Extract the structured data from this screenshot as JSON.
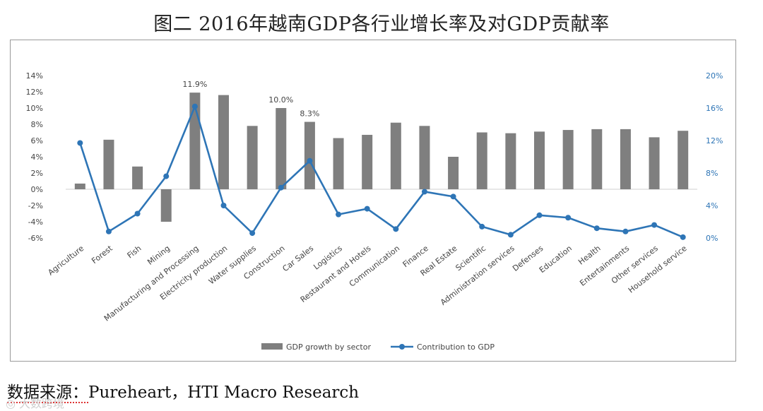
{
  "title": "图二 2016年越南GDP各行业增长率及对GDP贡献率",
  "source": {
    "label": "数据来源：",
    "text": "Pureheart，HTI Macro Research"
  },
  "watermark": "◎ 大数跨境",
  "chart_data": {
    "type": "bar",
    "categories": [
      "Agriculture",
      "Forest",
      "Fish",
      "Mining",
      "Manufacturing and Processing",
      "Electricity production",
      "Water supplies",
      "Construction",
      "Car Sales",
      "Logistics",
      "Restaurant and Hotels",
      "Communication",
      "Finance",
      "Real Estate",
      "Scientific",
      "Administration services",
      "Defenses",
      "Education",
      "Health",
      "Entertainments",
      "Other services",
      "Household service"
    ],
    "series": [
      {
        "name": "GDP growth by sector",
        "type": "bar",
        "axis": "left",
        "color": "#7f7f7f",
        "values": [
          0.7,
          6.1,
          2.8,
          -4.0,
          11.9,
          11.6,
          7.8,
          10.0,
          8.3,
          6.3,
          6.7,
          8.2,
          7.8,
          4.0,
          7.0,
          6.9,
          7.1,
          7.3,
          7.4,
          7.4,
          6.4,
          7.2
        ]
      },
      {
        "name": "Contribution to GDP",
        "type": "line",
        "axis": "right",
        "color": "#2e75b6",
        "values": [
          11.7,
          0.8,
          3.0,
          7.6,
          16.2,
          4.0,
          0.6,
          6.2,
          9.5,
          2.9,
          3.6,
          1.1,
          5.7,
          5.1,
          1.4,
          0.4,
          2.8,
          2.5,
          1.2,
          0.8,
          1.6,
          0.1
        ]
      }
    ],
    "y_left": {
      "min": -6,
      "max": 14,
      "ticks": [
        14,
        12,
        10,
        8,
        6,
        4,
        2,
        0,
        -2,
        -4,
        -6
      ],
      "tick_labels": [
        "14%",
        "12%",
        "10%",
        "8%",
        "6%",
        "4%",
        "2%",
        "0%",
        "-2%",
        "-4%",
        "-6%"
      ]
    },
    "y_right": {
      "min": 0,
      "max": 20,
      "ticks": [
        20,
        16,
        12,
        8,
        4,
        0
      ],
      "tick_labels": [
        "20%",
        "16%",
        "12%",
        "8%",
        "4%",
        "0%"
      ]
    },
    "data_labels": [
      {
        "index": 4,
        "text": "11.9%"
      },
      {
        "index": 7,
        "text": "10.0%"
      },
      {
        "index": 8,
        "text": "8.3%"
      }
    ],
    "legend": {
      "position": "bottom",
      "items": [
        "GDP growth by sector",
        "Contribution to GDP"
      ]
    },
    "grid": false
  }
}
